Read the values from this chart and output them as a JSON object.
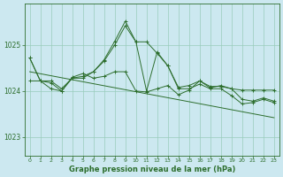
{
  "bg_color": "#cce8f0",
  "grid_color": "#99ccbb",
  "line_color": "#2d6e2d",
  "title": "Graphe pression niveau de la mer (hPa)",
  "xlim": [
    -0.5,
    23.5
  ],
  "ylim": [
    1022.6,
    1025.9
  ],
  "yticks": [
    1023,
    1024,
    1025
  ],
  "xticks": [
    0,
    1,
    2,
    3,
    4,
    5,
    6,
    7,
    8,
    9,
    10,
    11,
    12,
    13,
    14,
    15,
    16,
    17,
    18,
    19,
    20,
    21,
    22,
    23
  ],
  "series1_x": [
    0,
    1,
    2,
    3,
    4,
    5,
    6,
    7,
    8,
    9,
    10,
    11,
    12,
    13,
    14,
    15,
    16,
    17,
    18,
    19,
    20,
    21,
    22,
    23
  ],
  "series1_y": [
    1024.72,
    1024.22,
    1024.22,
    1024.05,
    1024.28,
    1024.32,
    1024.42,
    1024.65,
    1025.0,
    1025.42,
    1025.07,
    1025.07,
    1024.82,
    1024.55,
    1024.08,
    1024.12,
    1024.22,
    1024.07,
    1024.12,
    1024.05,
    1024.02,
    1024.02,
    1024.02,
    1024.02
  ],
  "series2_x": [
    0,
    1,
    2,
    3,
    4,
    5,
    6,
    7,
    8,
    9,
    10,
    11,
    12,
    13,
    14,
    15,
    16,
    17,
    18,
    19,
    20,
    21,
    22,
    23
  ],
  "series2_y": [
    1024.22,
    1024.22,
    1024.05,
    1024.0,
    1024.3,
    1024.38,
    1024.28,
    1024.32,
    1024.42,
    1024.42,
    1024.0,
    1023.98,
    1024.05,
    1024.12,
    1023.92,
    1024.02,
    1024.22,
    1024.1,
    1024.1,
    1024.05,
    1023.82,
    1023.78,
    1023.85,
    1023.78
  ],
  "series3_x": [
    0,
    23
  ],
  "series3_y": [
    1024.42,
    1023.42
  ],
  "series4_x": [
    0,
    1,
    2,
    3,
    4,
    5,
    6,
    7,
    8,
    9,
    10,
    11,
    12,
    13,
    14,
    15,
    16,
    17,
    18,
    19,
    20,
    21,
    22,
    23
  ],
  "series4_y": [
    1024.72,
    1024.22,
    1024.18,
    1024.0,
    1024.28,
    1024.28,
    1024.42,
    1024.68,
    1025.08,
    1025.52,
    1025.07,
    1024.0,
    1024.85,
    1024.55,
    1024.05,
    1024.05,
    1024.15,
    1024.05,
    1024.05,
    1023.9,
    1023.72,
    1023.75,
    1023.82,
    1023.75
  ]
}
